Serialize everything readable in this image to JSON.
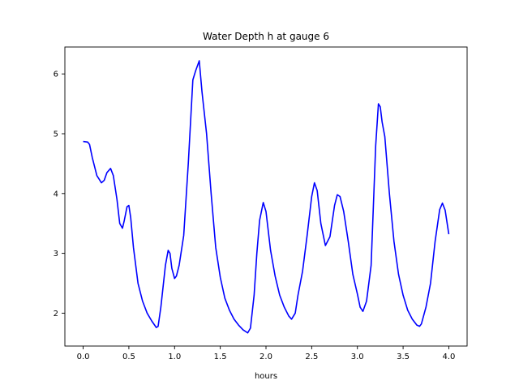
{
  "chart_data": {
    "type": "line",
    "title": "Water Depth h at gauge 6",
    "xlabel": "hours",
    "ylabel": "",
    "xlim": [
      -0.2,
      4.2
    ],
    "ylim": [
      1.45,
      6.45
    ],
    "xticks": [
      0.0,
      0.5,
      1.0,
      1.5,
      2.0,
      2.5,
      3.0,
      3.5,
      4.0
    ],
    "xtick_labels": [
      "0.0",
      "0.5",
      "1.0",
      "1.5",
      "2.0",
      "2.5",
      "3.0",
      "3.5",
      "4.0"
    ],
    "yticks": [
      2,
      3,
      4,
      5,
      6
    ],
    "ytick_labels": [
      "2",
      "3",
      "4",
      "5",
      "6"
    ],
    "grid": false,
    "series": [
      {
        "color": "#0000ff",
        "x": [
          0.0,
          0.05,
          0.07,
          0.1,
          0.15,
          0.2,
          0.23,
          0.26,
          0.3,
          0.33,
          0.37,
          0.4,
          0.43,
          0.45,
          0.48,
          0.5,
          0.52,
          0.55,
          0.6,
          0.65,
          0.7,
          0.75,
          0.8,
          0.82,
          0.85,
          0.9,
          0.93,
          0.95,
          0.97,
          1.0,
          1.02,
          1.05,
          1.1,
          1.15,
          1.2,
          1.23,
          1.27,
          1.3,
          1.35,
          1.4,
          1.45,
          1.5,
          1.55,
          1.6,
          1.65,
          1.7,
          1.75,
          1.8,
          1.83,
          1.87,
          1.9,
          1.93,
          1.97,
          2.0,
          2.05,
          2.1,
          2.15,
          2.2,
          2.25,
          2.28,
          2.32,
          2.35,
          2.4,
          2.45,
          2.5,
          2.53,
          2.56,
          2.6,
          2.65,
          2.7,
          2.75,
          2.78,
          2.81,
          2.85,
          2.9,
          2.95,
          3.0,
          3.03,
          3.06,
          3.1,
          3.15,
          3.2,
          3.23,
          3.25,
          3.27,
          3.3,
          3.35,
          3.4,
          3.45,
          3.5,
          3.55,
          3.6,
          3.65,
          3.68,
          3.7,
          3.75,
          3.8,
          3.85,
          3.9,
          3.93,
          3.96,
          4.0
        ],
        "y": [
          4.87,
          4.86,
          4.82,
          4.6,
          4.3,
          4.18,
          4.22,
          4.35,
          4.42,
          4.3,
          3.9,
          3.5,
          3.42,
          3.55,
          3.78,
          3.8,
          3.6,
          3.1,
          2.5,
          2.2,
          2.0,
          1.87,
          1.76,
          1.78,
          2.1,
          2.8,
          3.05,
          3.0,
          2.75,
          2.58,
          2.62,
          2.8,
          3.3,
          4.5,
          5.9,
          6.05,
          6.22,
          5.7,
          5.0,
          4.0,
          3.1,
          2.6,
          2.25,
          2.05,
          1.9,
          1.8,
          1.72,
          1.67,
          1.75,
          2.3,
          3.0,
          3.55,
          3.85,
          3.7,
          3.05,
          2.62,
          2.3,
          2.1,
          1.95,
          1.9,
          2.0,
          2.3,
          2.7,
          3.3,
          3.95,
          4.18,
          4.05,
          3.5,
          3.13,
          3.28,
          3.8,
          3.98,
          3.95,
          3.7,
          3.2,
          2.65,
          2.32,
          2.1,
          2.03,
          2.2,
          2.8,
          4.8,
          5.5,
          5.45,
          5.2,
          4.95,
          4.0,
          3.2,
          2.65,
          2.3,
          2.05,
          1.9,
          1.8,
          1.78,
          1.82,
          2.1,
          2.5,
          3.2,
          3.73,
          3.84,
          3.72,
          3.32
        ]
      }
    ]
  }
}
